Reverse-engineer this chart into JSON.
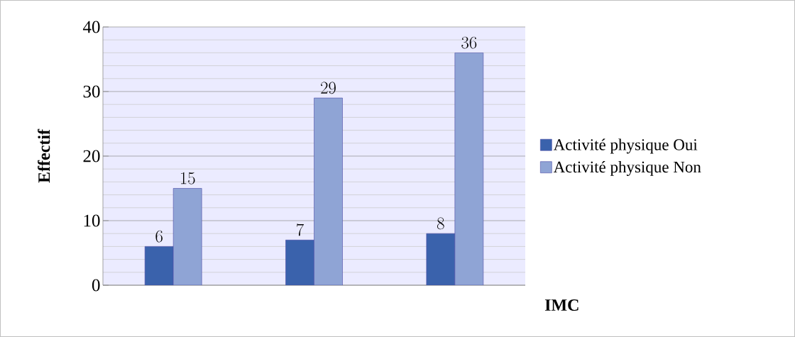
{
  "chart_data": {
    "type": "bar",
    "xlabel": "IMC",
    "ylabel": "Effectif",
    "categories": [
      null,
      null,
      null
    ],
    "series": [
      {
        "name": "Activité physique Oui",
        "color": "#3a62ac",
        "values": [
          6,
          7,
          8
        ]
      },
      {
        "name": "Activité physique Non",
        "color": "#8fa4d5",
        "values": [
          15,
          29,
          36
        ]
      }
    ],
    "ylim": [
      0,
      40
    ],
    "yticks": [
      0,
      10,
      20,
      30,
      40
    ],
    "grid": "y",
    "legend": "right",
    "data_labels": true
  }
}
